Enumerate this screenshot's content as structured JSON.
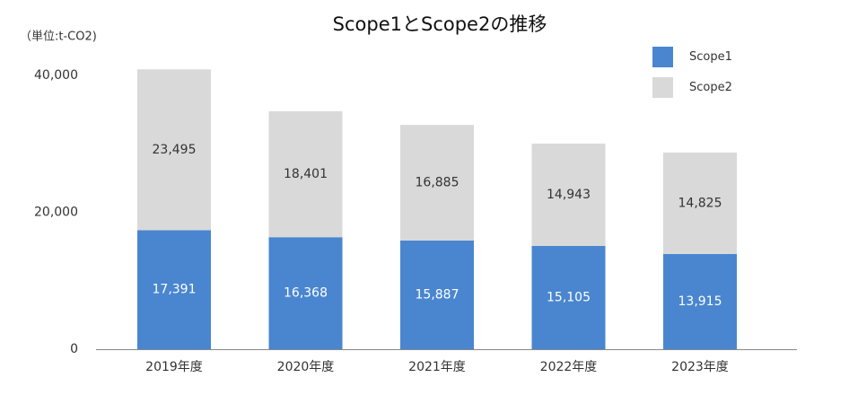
{
  "chart_data": {
    "type": "stacked_bar",
    "title": "Scope1とScope2の推移",
    "ylabel": "（単位:t-CO2)",
    "categories": [
      "2019年度",
      "2020年度",
      "2021年度",
      "2022年度",
      "2023年度"
    ],
    "series": [
      {
        "name": "Scope1",
        "color": "#4a86cf",
        "values": [
          17391,
          16368,
          15887,
          15105,
          13915
        ],
        "value_labels": [
          "17,391",
          "16,368",
          "15,887",
          "15,105",
          "13,915"
        ]
      },
      {
        "name": "Scope2",
        "color": "#d9d9d9",
        "values": [
          23495,
          18401,
          16885,
          14943,
          14825
        ],
        "value_labels": [
          "23,495",
          "18,401",
          "16,885",
          "14,943",
          "14,825"
        ]
      }
    ],
    "ylim": [
      0,
      45000
    ],
    "yticks": [
      0,
      {
        "value": 20000,
        "label": "20,000"
      },
      {
        "value": 40000,
        "label": "40,000"
      }
    ],
    "legend": "top-right",
    "grid": false
  }
}
